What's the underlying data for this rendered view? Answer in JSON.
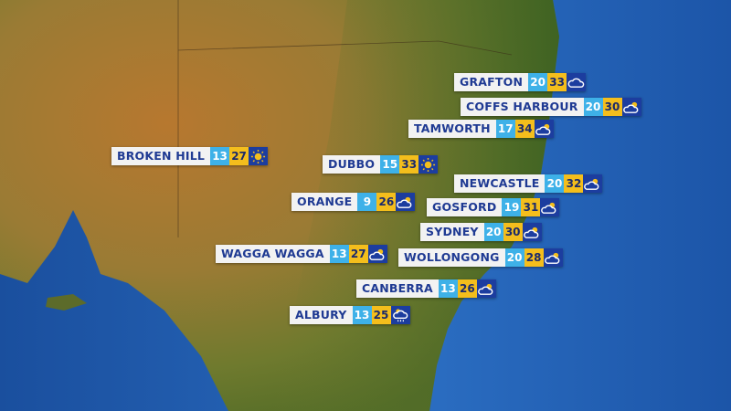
{
  "colors": {
    "min_bg": "#3eb1e8",
    "max_bg": "#f4be1c",
    "icon_bg": "#1c3d9f",
    "name_text": "#1f3a93",
    "sea": "#1f5fb0"
  },
  "cities": [
    {
      "name": "GRAFTON",
      "min": "20",
      "max": "33",
      "icon": "cloudy-icon"
    },
    {
      "name": "COFFS HARBOUR",
      "min": "20",
      "max": "30",
      "icon": "partly-cloudy-icon"
    },
    {
      "name": "TAMWORTH",
      "min": "17",
      "max": "34",
      "icon": "partly-cloudy-icon"
    },
    {
      "name": "BROKEN HILL",
      "min": "13",
      "max": "27",
      "icon": "sunny-icon"
    },
    {
      "name": "DUBBO",
      "min": "15",
      "max": "33",
      "icon": "sunny-icon"
    },
    {
      "name": "NEWCASTLE",
      "min": "20",
      "max": "32",
      "icon": "partly-cloudy-icon"
    },
    {
      "name": "ORANGE",
      "min": "9",
      "max": "26",
      "icon": "partly-cloudy-icon"
    },
    {
      "name": "GOSFORD",
      "min": "19",
      "max": "31",
      "icon": "partly-cloudy-icon"
    },
    {
      "name": "SYDNEY",
      "min": "20",
      "max": "30",
      "icon": "partly-cloudy-icon"
    },
    {
      "name": "WAGGA WAGGA",
      "min": "13",
      "max": "27",
      "icon": "partly-cloudy-icon"
    },
    {
      "name": "WOLLONGONG",
      "min": "20",
      "max": "28",
      "icon": "partly-cloudy-icon"
    },
    {
      "name": "CANBERRA",
      "min": "13",
      "max": "26",
      "icon": "partly-cloudy-icon"
    },
    {
      "name": "ALBURY",
      "min": "13",
      "max": "25",
      "icon": "shower-icon"
    }
  ]
}
